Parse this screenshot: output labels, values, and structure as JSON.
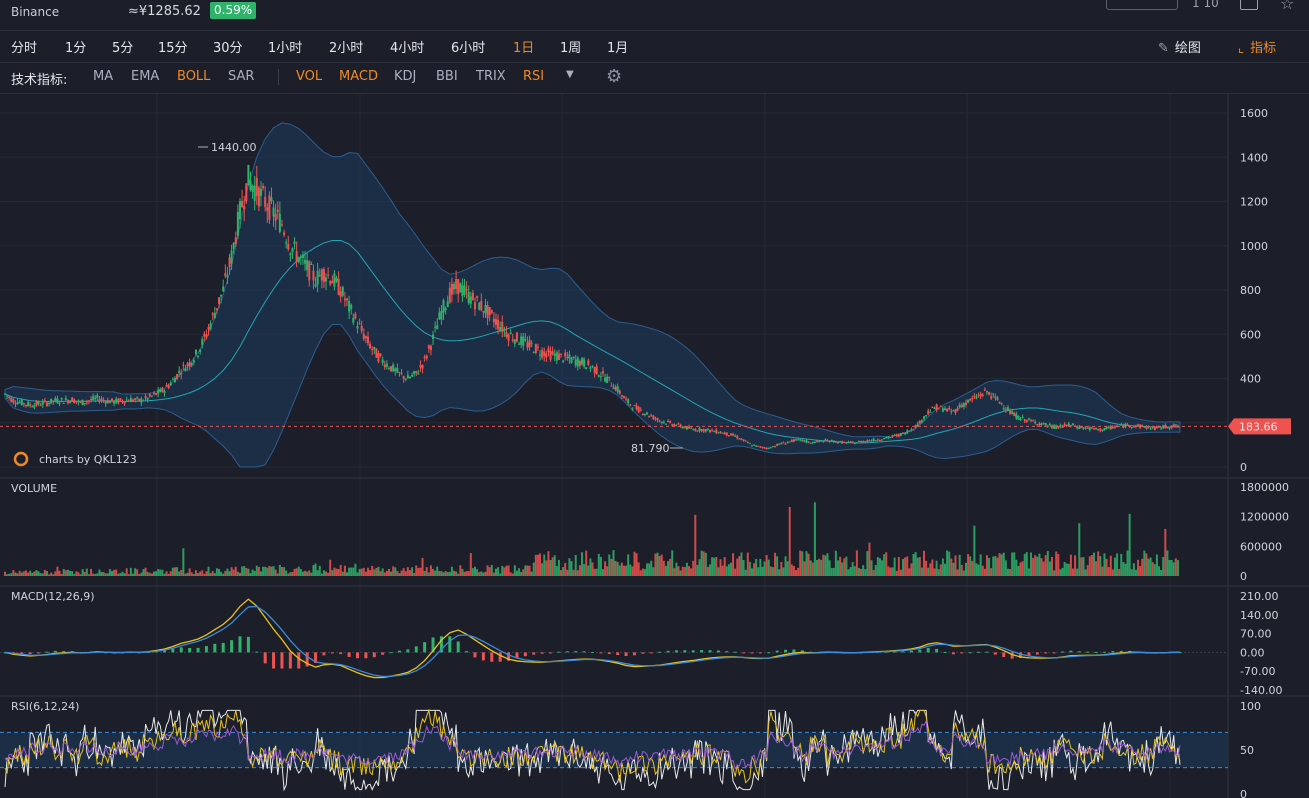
{
  "header": {
    "exchange": "Binance",
    "cny_price": "≈¥1285.62",
    "change": "0.59%",
    "top_right_text": "1 10"
  },
  "toolbar": {
    "timeframes": [
      "分时",
      "1分",
      "5分",
      "15分",
      "30分",
      "1小时",
      "2小时",
      "4小时",
      "6小时",
      "1日",
      "1周",
      "1月"
    ],
    "active_timeframe": "1日",
    "draw_label": "绘图",
    "indicator_label": "指标"
  },
  "indicator_bar": {
    "label": "技术指标:",
    "main_items": [
      "MA",
      "EMA",
      "BOLL",
      "SAR"
    ],
    "main_active": [
      "BOLL"
    ],
    "sub_items": [
      "VOL",
      "MACD",
      "KDJ",
      "BBI",
      "TRIX",
      "RSI"
    ],
    "sub_active": [
      "VOL",
      "MACD",
      "RSI"
    ]
  },
  "watermark": "charts by QKL123",
  "colors": {
    "up": "#2fb36b",
    "down": "#ef5350",
    "accent": "#f08a24",
    "boll": "#3b8bd9",
    "price_tag": "#ef5350"
  },
  "chart_data": [
    {
      "type": "candlestick",
      "overlay": "BOLL",
      "yticks": [
        0,
        200,
        400,
        600,
        800,
        1000,
        1200,
        1400,
        1600
      ],
      "ytick_labels": [
        "0",
        "",
        "400",
        "600",
        "800",
        "1000",
        "1200",
        "1400",
        "1600"
      ],
      "ylim": [
        0,
        1600
      ],
      "high_annotation": "1440.00",
      "low_annotation": "81.790",
      "last_price": "183.66",
      "close_series": [
        330,
        300,
        290,
        280,
        285,
        290,
        300,
        300,
        305,
        290,
        300,
        310,
        300,
        295,
        300,
        305,
        300,
        310,
        330,
        350,
        390,
        440,
        470,
        520,
        600,
        700,
        800,
        950,
        1150,
        1300,
        1250,
        1200,
        1150,
        1100,
        1000,
        950,
        900,
        850,
        880,
        850,
        800,
        720,
        650,
        580,
        520,
        480,
        450,
        420,
        400,
        420,
        480,
        580,
        700,
        780,
        820,
        780,
        750,
        720,
        680,
        640,
        600,
        580,
        560,
        540,
        520,
        510,
        500,
        490,
        480,
        470,
        450,
        420,
        390,
        350,
        300,
        270,
        250,
        230,
        210,
        200,
        190,
        180,
        170,
        170,
        165,
        160,
        150,
        140,
        120,
        100,
        90,
        85,
        100,
        110,
        120,
        120,
        110,
        115,
        120,
        115,
        110,
        110,
        115,
        120,
        125,
        130,
        140,
        150,
        170,
        200,
        250,
        270,
        260,
        250,
        280,
        300,
        320,
        340,
        310,
        280,
        240,
        220,
        210,
        200,
        190,
        180,
        185,
        190,
        180,
        175,
        170,
        170,
        180,
        185,
        190,
        185,
        180,
        175,
        180,
        185,
        184
      ]
    },
    {
      "type": "bar",
      "title": "VOLUME",
      "yticks": [
        0,
        600000,
        1200000,
        1800000
      ],
      "ytick_labels": [
        "0",
        "600000",
        "1200000",
        "1800000"
      ],
      "ylim": [
        0,
        1800000
      ]
    },
    {
      "type": "line",
      "title": "MACD(12,26,9)",
      "yticks": [
        -140,
        -70,
        0,
        70,
        140,
        210
      ],
      "ytick_labels": [
        "-140.00",
        "-70.00",
        "0.00",
        "70.00",
        "140.00",
        "210.00"
      ],
      "ylim": [
        -140,
        210
      ]
    },
    {
      "type": "line",
      "title": "RSI(6,12,24)",
      "yticks": [
        0,
        50,
        100
      ],
      "ytick_labels": [
        "0",
        "50",
        "100"
      ],
      "ylim": [
        0,
        100
      ],
      "bands": [
        30,
        70
      ]
    }
  ]
}
